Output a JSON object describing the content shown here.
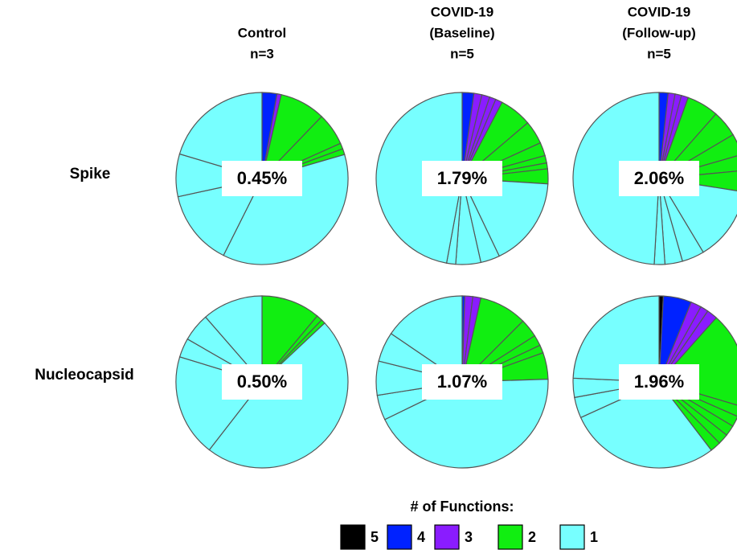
{
  "columns": [
    [
      "Control",
      "n=3"
    ],
    [
      "COVID-19",
      "(Baseline)",
      "n=5"
    ],
    [
      "COVID-19",
      "(Follow-up)",
      "n=5"
    ]
  ],
  "rows": [
    "Spike",
    "Nucleocapsid"
  ],
  "legend": {
    "title": "# of Functions:",
    "items": [
      {
        "label": "5",
        "color": "#000000"
      },
      {
        "label": "4",
        "color": "#0022ff"
      },
      {
        "label": "3",
        "color": "#8a1cff"
      },
      {
        "label": "2",
        "color": "#11ee11"
      },
      {
        "label": "1",
        "color": "#77ffff"
      }
    ]
  },
  "chart_data": [
    {
      "type": "pie",
      "center_label": "0.45%",
      "values": [
        2.8,
        0.8,
        8.6,
        6.1,
        1.1,
        1.1,
        36.9,
        14.2,
        8,
        20.4
      ],
      "colors": [
        "#0022ff",
        "#8a1cff",
        "#11ee11",
        "#11ee11",
        "#11ee11",
        "#11ee11",
        "#77ffff",
        "#77ffff",
        "#77ffff",
        "#77ffff"
      ]
    },
    {
      "type": "pie",
      "center_label": "1.79%",
      "values": [
        2.2,
        1.5,
        1.5,
        1.2,
        1.3,
        6.1,
        4.4,
        2.5,
        1.4,
        1.1,
        2.8,
        16.9,
        3.6,
        4.7,
        1.7,
        47.1
      ],
      "colors": [
        "#0022ff",
        "#8a1cff",
        "#8a1cff",
        "#8a1cff",
        "#8a1cff",
        "#11ee11",
        "#11ee11",
        "#11ee11",
        "#11ee11",
        "#11ee11",
        "#11ee11",
        "#77ffff",
        "#77ffff",
        "#77ffff",
        "#77ffff",
        "#77ffff"
      ]
    },
    {
      "type": "pie",
      "center_label": "2.06%",
      "values": [
        1.7,
        1.3,
        1.2,
        1.3,
        6,
        5,
        4,
        3,
        4,
        13.9,
        4.2,
        3.3,
        2,
        49.1
      ],
      "colors": [
        "#0022ff",
        "#8a1cff",
        "#8a1cff",
        "#8a1cff",
        "#11ee11",
        "#11ee11",
        "#11ee11",
        "#11ee11",
        "#11ee11",
        "#77ffff",
        "#77ffff",
        "#77ffff",
        "#77ffff",
        "#77ffff"
      ]
    },
    {
      "type": "pie",
      "center_label": "0.50%",
      "values": [
        11.1,
        1.1,
        0.8,
        47.5,
        19.2,
        3.6,
        5.3,
        11.4
      ],
      "colors": [
        "#11ee11",
        "#11ee11",
        "#11ee11",
        "#77ffff",
        "#77ffff",
        "#77ffff",
        "#77ffff",
        "#77ffff"
      ]
    },
    {
      "type": "pie",
      "center_label": "1.07%",
      "values": [
        0.5,
        1.5,
        1.5,
        9,
        3.5,
        2,
        1.5,
        5,
        43.3,
        4.7,
        6.4,
        5.6,
        15.5
      ],
      "colors": [
        "#0022ff",
        "#8a1cff",
        "#8a1cff",
        "#11ee11",
        "#11ee11",
        "#11ee11",
        "#11ee11",
        "#11ee11",
        "#77ffff",
        "#77ffff",
        "#77ffff",
        "#77ffff",
        "#77ffff"
      ]
    },
    {
      "type": "pie",
      "center_label": "1.96%",
      "values": [
        0.8,
        5.3,
        2,
        1.5,
        2,
        18,
        2,
        2,
        2,
        2,
        2,
        28.6,
        3.9,
        3.6,
        24.3
      ],
      "colors": [
        "#000000",
        "#0022ff",
        "#8a1cff",
        "#8a1cff",
        "#8a1cff",
        "#11ee11",
        "#11ee11",
        "#11ee11",
        "#11ee11",
        "#11ee11",
        "#11ee11",
        "#77ffff",
        "#77ffff",
        "#77ffff",
        "#77ffff"
      ]
    }
  ]
}
